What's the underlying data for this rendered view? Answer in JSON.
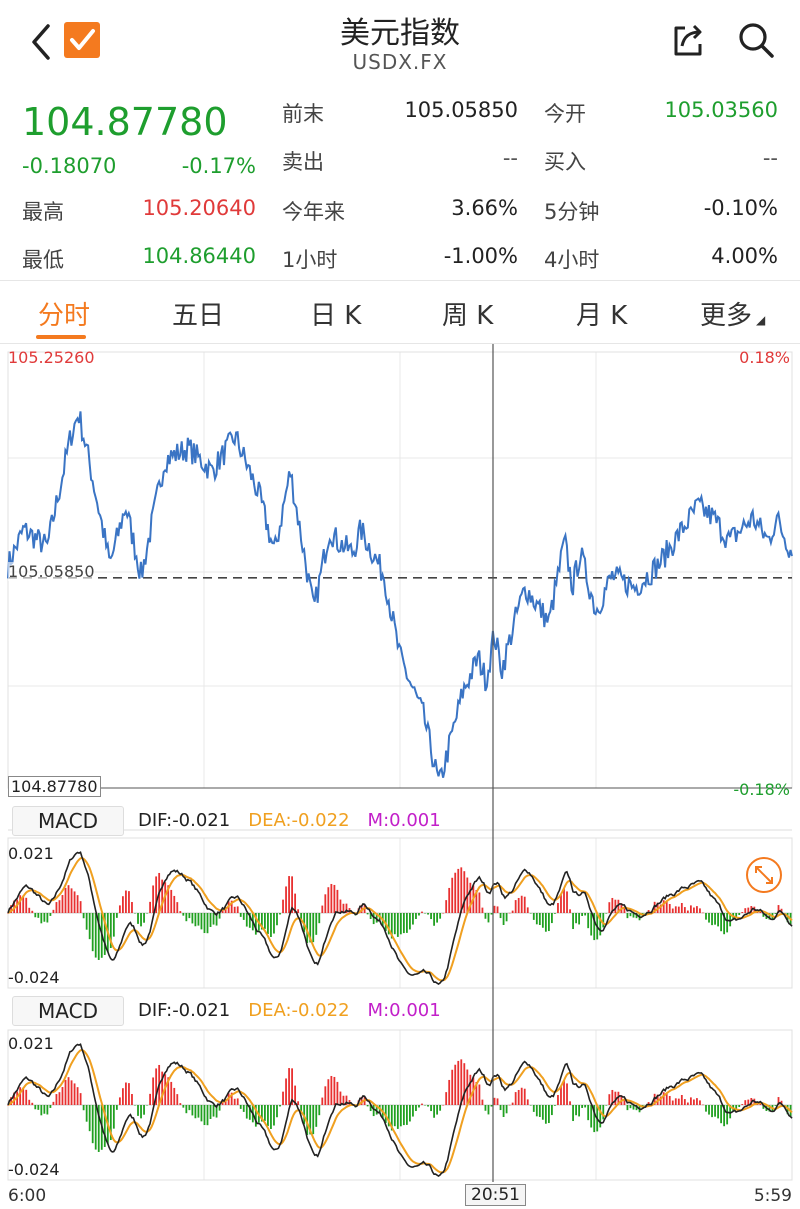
{
  "header": {
    "title": "美元指数",
    "subtitle": "USDX.FX",
    "back_icon": "chevron-left-icon",
    "logo_icon": "checkmark-logo-icon",
    "share_icon": "share-icon",
    "search_icon": "search-icon"
  },
  "quote": {
    "price": "104.87780",
    "change": "-0.18070",
    "change_pct": "-0.17%",
    "high_label": "最高",
    "high": "105.20640",
    "low_label": "最低",
    "low": "104.86440",
    "prev_close_label": "前末",
    "prev_close": "105.05850",
    "open_label": "今开",
    "open": "105.03560",
    "ask_label": "卖出",
    "ask": "--",
    "bid_label": "买入",
    "bid": "--",
    "ytd_label": "今年来",
    "ytd": "3.66%",
    "min5_label": "5分钟",
    "min5": "-0.10%",
    "hour1_label": "1小时",
    "hour1": "-1.00%",
    "hour4_label": "4小时",
    "hour4": "4.00%"
  },
  "tabs": [
    {
      "label": "分时",
      "active": true
    },
    {
      "label": "五日",
      "active": false
    },
    {
      "label": "日 K",
      "active": false
    },
    {
      "label": "周 K",
      "active": false
    },
    {
      "label": "月 K",
      "active": false
    },
    {
      "label": "更多",
      "active": false
    }
  ],
  "chart": {
    "max_label": "105.25260",
    "max_pct": "0.18%",
    "min_label": "104.87780",
    "min_pct": "-0.18%",
    "ref_label": "105.05850",
    "crosshair_time": "20:51",
    "time_start": "6:00",
    "time_end": "5:59",
    "expand_icon": "expand-arrows-icon"
  },
  "macd_panels": [
    {
      "tag": "MACD",
      "dif": "DIF:-0.021",
      "dea": "DEA:-0.022",
      "m": "M:0.001",
      "top": "0.021",
      "bottom": "-0.024"
    },
    {
      "tag": "MACD",
      "dif": "DIF:-0.021",
      "dea": "DEA:-0.022",
      "m": "M:0.001",
      "top": "0.021",
      "bottom": "-0.024"
    }
  ],
  "chart_data": {
    "type": "line",
    "ylim": [
      104.8778,
      105.2526
    ],
    "reference": 105.0585,
    "x": [
      "6:00",
      "20:51",
      "5:59"
    ],
    "keypoints_t": [
      0,
      0.02,
      0.05,
      0.08,
      0.09,
      0.1,
      0.13,
      0.15,
      0.17,
      0.2,
      0.23,
      0.26,
      0.29,
      0.32,
      0.34,
      0.36,
      0.39,
      0.41,
      0.42,
      0.44,
      0.45,
      0.48,
      0.5,
      0.53,
      0.55,
      0.58,
      0.6,
      0.61,
      0.62,
      0.63,
      0.65,
      0.66,
      0.69,
      0.71,
      0.72,
      0.73,
      0.75,
      0.77,
      0.8,
      0.83,
      0.86,
      0.88,
      0.9,
      0.92,
      0.95,
      0.97,
      0.98,
      1
    ],
    "keypoints_y": [
      105.069,
      105.1,
      105.085,
      105.18,
      105.2,
      105.17,
      105.07,
      105.12,
      105.06,
      105.16,
      105.17,
      105.15,
      105.18,
      105.13,
      105.08,
      105.15,
      105.03,
      105.1,
      105.09,
      105.08,
      105.1,
      105.06,
      104.99,
      104.94,
      104.88,
      104.96,
      104.99,
      104.97,
      105.01,
      104.98,
      105.03,
      105.05,
      105.02,
      105.09,
      105.05,
      105.08,
      105.03,
      105.06,
      105.05,
      105.07,
      105.1,
      105.12,
      105.11,
      105.09,
      105.11,
      105.09,
      105.11,
      105.08
    ],
    "series": [
      {
        "name": "DIF",
        "color": "#222222"
      },
      {
        "name": "DEA",
        "color": "#f0a020"
      },
      {
        "name": "M",
        "color": "#c21fc9"
      }
    ],
    "macd_ylim": [
      -0.024,
      0.021
    ]
  }
}
